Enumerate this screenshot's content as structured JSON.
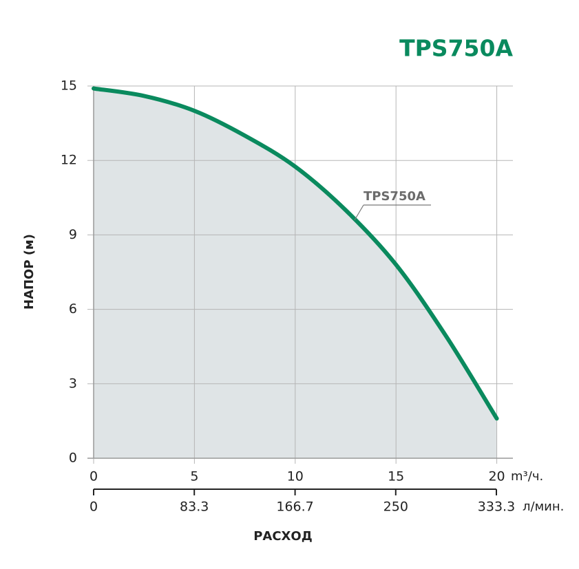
{
  "chart_data": {
    "type": "line",
    "title": "TPS750A",
    "x_label": "РАСХОД",
    "y_label": "НАПОР (м)",
    "x_unit": "m³/ч.",
    "x2_unit": "л/мин.",
    "x": [
      0,
      2.5,
      5,
      7.5,
      10,
      12.5,
      15,
      17.5,
      20
    ],
    "series": [
      {
        "name": "TPS750A",
        "color": "#0a8a5e",
        "values": [
          14.9,
          14.6,
          14.0,
          13.0,
          11.75,
          10.0,
          7.8,
          4.9,
          1.6
        ]
      }
    ],
    "fill_color": "#dfe4e6",
    "xlim": [
      0,
      20.8
    ],
    "xticks": [
      0,
      5,
      10,
      15,
      20
    ],
    "ylim": [
      0,
      15
    ],
    "yticks": [
      0,
      3,
      6,
      9,
      12,
      15
    ],
    "x2lim": [
      0,
      333.3
    ],
    "x2ticks": [
      0,
      83.3,
      166.7,
      250,
      333.3
    ],
    "grid": true
  }
}
